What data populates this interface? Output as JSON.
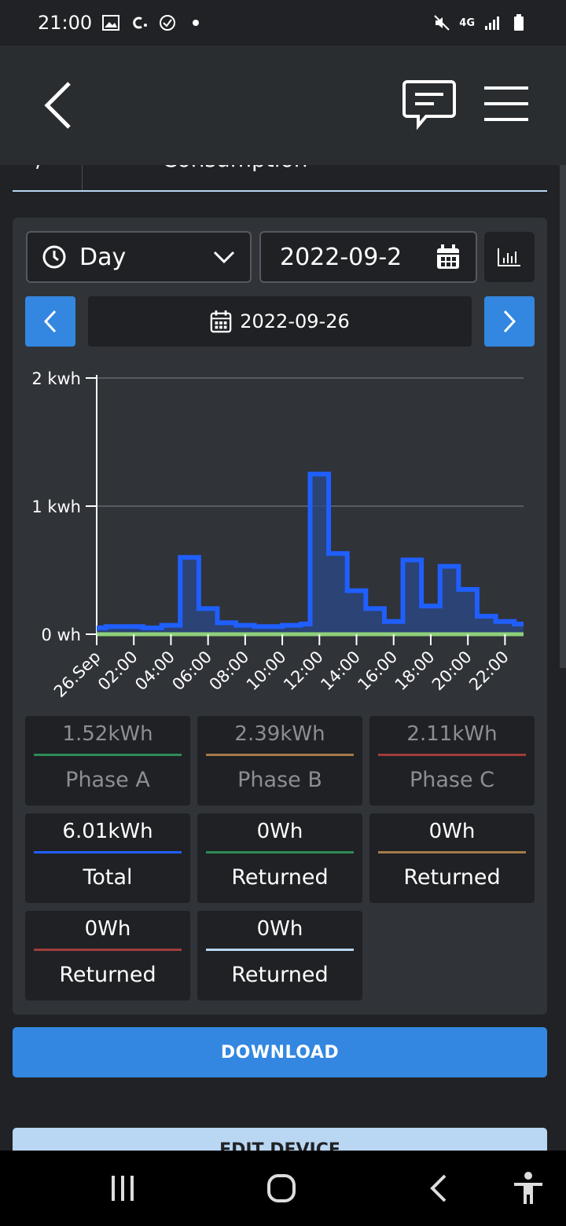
{
  "status_bar": {
    "time": "21:00",
    "network": "4G"
  },
  "header": {
    "tab_fragment": "Consumption",
    "tab_fragment_left": "/"
  },
  "controls": {
    "period_select": "Day",
    "date_input_value": "2022-09-2",
    "current_date": "2022-09-26"
  },
  "chart_data": {
    "type": "line",
    "step": true,
    "y_ticks": [
      "0 wh",
      "1 kwh",
      "2 kwh"
    ],
    "ylim": [
      0,
      2
    ],
    "x_tick_labels": [
      "26.Sep",
      "02:00",
      "04:00",
      "06:00",
      "08:00",
      "10:00",
      "12:00",
      "14:00",
      "16:00",
      "18:00",
      "20:00",
      "22:00"
    ],
    "grid": true,
    "series": [
      {
        "color": "#1f5fff",
        "fill": "#2a4a8a",
        "hours": [
          0,
          0.5,
          1,
          1.5,
          2,
          2.5,
          3,
          3.5,
          4,
          4.5,
          5,
          5.5,
          6,
          6.5,
          7,
          7.5,
          8,
          8.5,
          9,
          9.5,
          10,
          10.5,
          11,
          11.5,
          12,
          12.5,
          13,
          13.5,
          14,
          14.5,
          15,
          15.5,
          16,
          16.5,
          17,
          17.5,
          18,
          18.5,
          19,
          19.5,
          20,
          20.5,
          21,
          21.5,
          22,
          22.5,
          23
        ],
        "values": [
          0.05,
          0.06,
          0.06,
          0.06,
          0.06,
          0.05,
          0.05,
          0.07,
          0.07,
          0.6,
          0.6,
          0.2,
          0.2,
          0.09,
          0.09,
          0.07,
          0.07,
          0.06,
          0.06,
          0.06,
          0.07,
          0.07,
          0.08,
          1.25,
          1.25,
          0.63,
          0.63,
          0.34,
          0.34,
          0.2,
          0.2,
          0.1,
          0.1,
          0.58,
          0.58,
          0.22,
          0.22,
          0.53,
          0.53,
          0.35,
          0.35,
          0.14,
          0.14,
          0.1,
          0.1,
          0.08,
          0.08
        ]
      },
      {
        "color": "#8fd07a",
        "hours": [
          0,
          23
        ],
        "values": [
          0,
          0
        ]
      }
    ]
  },
  "tiles": [
    {
      "value": "1.52kWh",
      "label": "Phase A",
      "color": "#2e8b57",
      "muted": true
    },
    {
      "value": "2.39kWh",
      "label": "Phase B",
      "color": "#a57a4a",
      "muted": true
    },
    {
      "value": "2.11kWh",
      "label": "Phase C",
      "color": "#a03c3c",
      "muted": true
    },
    {
      "value": "6.01kWh",
      "label": "Total",
      "color": "#1f5fff",
      "muted": false
    },
    {
      "value": "0Wh",
      "label": "Returned",
      "color": "#2e8b57",
      "muted": false
    },
    {
      "value": "0Wh",
      "label": "Returned",
      "color": "#a57a4a",
      "muted": false
    },
    {
      "value": "0Wh",
      "label": "Returned",
      "color": "#a03c3c",
      "muted": false
    },
    {
      "value": "0Wh",
      "label": "Returned",
      "color": "#b9d6f2",
      "muted": false
    }
  ],
  "buttons": {
    "download": "DOWNLOAD",
    "edit_device": "EDIT DEVICE"
  },
  "colors": {
    "accent": "#3387e0",
    "light_accent": "#b9d6f2"
  },
  "icons": [
    "back-arrow-icon",
    "chat-icon",
    "menu-icon",
    "clock-icon",
    "chevron-down-icon",
    "calendar-icon",
    "bar-chart-icon",
    "chevron-left-icon",
    "chevron-right-icon"
  ]
}
